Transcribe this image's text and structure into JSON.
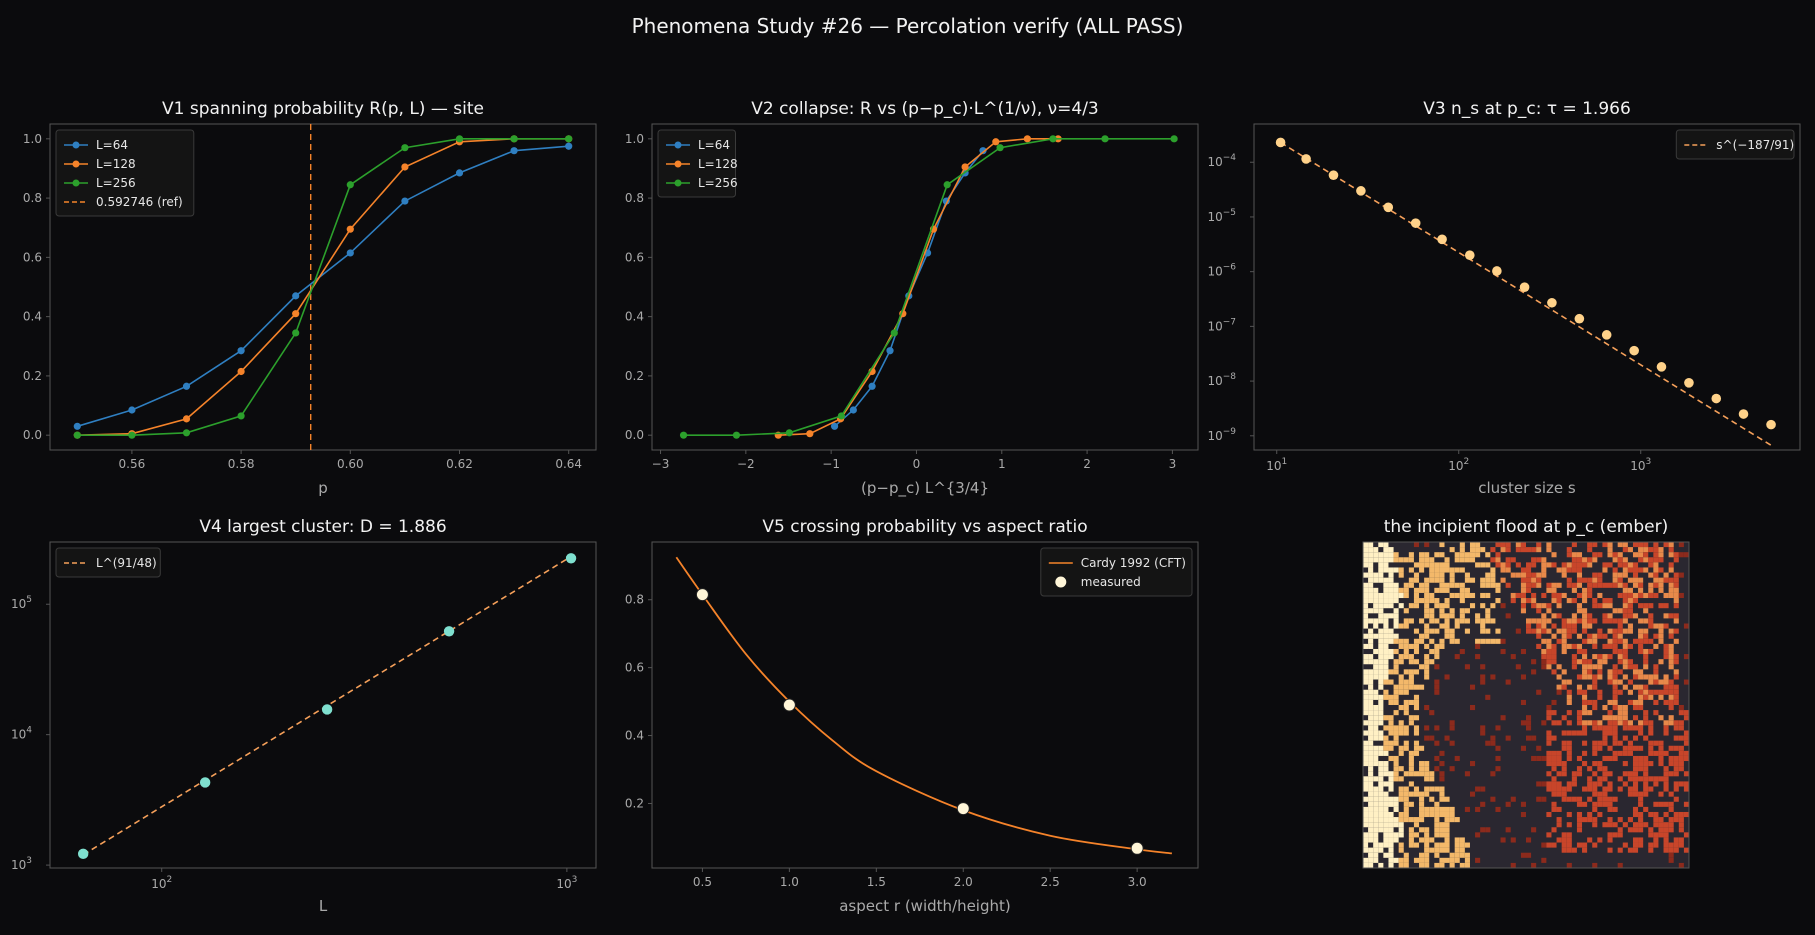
{
  "figure": {
    "title": "Phenomena Study #26 — Percolation verify (ALL PASS)",
    "colors": {
      "background": "#0b0b0d",
      "panel": "#0b0b0d",
      "frame": "#555555",
      "text": "#f2f2f2",
      "tick_text": "#aaaaaa",
      "label_text": "#aaaaaa"
    }
  },
  "chart_data": [
    {
      "id": "v1",
      "type": "line",
      "title": "V1 spanning probability R(p, L) — site",
      "xlabel": "p",
      "ylabel": "",
      "xlim": [
        0.545,
        0.645
      ],
      "ylim": [
        -0.05,
        1.05
      ],
      "xscale": "linear",
      "yscale": "linear",
      "xticks": [
        0.56,
        0.58,
        0.6,
        0.62,
        0.64
      ],
      "xtick_labels": [
        "0.56",
        "0.58",
        "0.60",
        "0.62",
        "0.64"
      ],
      "yticks": [
        0.0,
        0.2,
        0.4,
        0.6,
        0.8,
        1.0
      ],
      "ytick_labels": [
        "0.0",
        "0.2",
        "0.4",
        "0.6",
        "0.8",
        "1.0"
      ],
      "legend_position": "top-left",
      "x": [
        0.55,
        0.56,
        0.57,
        0.58,
        0.59,
        0.6,
        0.61,
        0.62,
        0.63,
        0.64
      ],
      "series": [
        {
          "name": "L=64",
          "color": "#2f7fc1",
          "values": [
            0.03,
            0.085,
            0.165,
            0.285,
            0.47,
            0.615,
            0.79,
            0.885,
            0.96,
            0.975
          ]
        },
        {
          "name": "L=128",
          "color": "#f5832a",
          "values": [
            0.0,
            0.005,
            0.055,
            0.215,
            0.41,
            0.695,
            0.905,
            0.99,
            1.0,
            1.0
          ]
        },
        {
          "name": "L=256",
          "color": "#2ca02c",
          "values": [
            0.0,
            0.0,
            0.008,
            0.065,
            0.345,
            0.845,
            0.97,
            1.0,
            1.0,
            1.0
          ]
        }
      ],
      "reference_lines": [
        {
          "name": "0.592746 (ref)",
          "orientation": "vertical",
          "x": 0.592746,
          "color": "#f5832a",
          "dashed": true
        }
      ]
    },
    {
      "id": "v2",
      "type": "line",
      "title": "V2 collapse: R vs (p−p_c)·L^(1/ν),  ν=4/3",
      "xlabel": "(p−p_c) L^{3/4}",
      "ylabel": "",
      "xlim": [
        -3.1,
        3.3
      ],
      "ylim": [
        -0.05,
        1.05
      ],
      "xscale": "linear",
      "yscale": "linear",
      "xticks": [
        -3,
        -2,
        -1,
        0,
        1,
        2,
        3
      ],
      "xtick_labels": [
        "−3",
        "−2",
        "−1",
        "0",
        "1",
        "2",
        "3"
      ],
      "yticks": [
        0.0,
        0.2,
        0.4,
        0.6,
        0.8,
        1.0
      ],
      "ytick_labels": [
        "0.0",
        "0.2",
        "0.4",
        "0.6",
        "0.8",
        "1.0"
      ],
      "legend_position": "top-left",
      "series": [
        {
          "name": "L=64",
          "color": "#2f7fc1",
          "x": [
            -0.96,
            -0.74,
            -0.52,
            -0.31,
            -0.09,
            0.13,
            0.35,
            0.57,
            0.78
          ],
          "values": [
            0.03,
            0.085,
            0.165,
            0.285,
            0.47,
            0.615,
            0.79,
            0.885,
            0.96
          ]
        },
        {
          "name": "L=128",
          "color": "#f5832a",
          "x": [
            -1.62,
            -1.25,
            -0.89,
            -0.52,
            -0.16,
            0.2,
            0.57,
            0.93,
            1.3,
            1.66
          ],
          "values": [
            0.0,
            0.005,
            0.055,
            0.215,
            0.41,
            0.695,
            0.905,
            0.99,
            1.0,
            1.0
          ]
        },
        {
          "name": "L=256",
          "color": "#2ca02c",
          "x": [
            -2.73,
            -2.11,
            -1.49,
            -0.88,
            -0.26,
            0.36,
            0.98,
            1.6,
            2.21,
            3.02
          ],
          "values": [
            0.0,
            0.0,
            0.008,
            0.065,
            0.345,
            0.845,
            0.97,
            1.0,
            1.0,
            1.0
          ]
        }
      ]
    },
    {
      "id": "v3",
      "type": "scatter",
      "title": "V3 n_s at p_c: τ = 1.966",
      "xlabel": "cluster size s",
      "ylabel": "",
      "xscale": "log",
      "yscale": "log",
      "xlim": [
        7.5,
        7500
      ],
      "ylim": [
        5.5e-10,
        0.0005
      ],
      "xticks": [
        10,
        100,
        1000
      ],
      "xtick_labels": [
        [
          "10",
          "1"
        ],
        [
          "10",
          "2"
        ],
        [
          "10",
          "3"
        ]
      ],
      "yticks": [
        1e-09,
        1e-08,
        1e-07,
        1e-06,
        1e-05,
        0.0001
      ],
      "ytick_labels": [
        [
          "10",
          "−9"
        ],
        [
          "10",
          "−8"
        ],
        [
          "10",
          "−7"
        ],
        [
          "10",
          "−6"
        ],
        [
          "10",
          "−5"
        ],
        [
          "10",
          "−4"
        ]
      ],
      "legend_position": "top-right",
      "series": [
        {
          "name": "",
          "color": "#ffd28a",
          "marker": "circle",
          "x": [
            10.5,
            14.5,
            20.5,
            29,
            41,
            58,
            81,
            115,
            162,
            230,
            325,
            460,
            650,
            920,
            1300,
            1840,
            2600,
            3670,
            5200
          ],
          "values": [
            0.00023,
            0.000115,
            5.8e-05,
            3e-05,
            1.5e-05,
            7.7e-06,
            3.9e-06,
            2e-06,
            1.03e-06,
            5.2e-07,
            2.7e-07,
            1.38e-07,
            7e-08,
            3.6e-08,
            1.82e-08,
            9.3e-09,
            4.8e-09,
            2.5e-09,
            1.6e-09
          ]
        }
      ],
      "reference_lines": [
        {
          "name": "s^(−187/91)",
          "color": "#f5a05a",
          "dashed": true,
          "exponent": -2.0549,
          "x": [
            10.5,
            5200
          ],
          "values": [
            0.00023,
            6.7e-10
          ]
        }
      ]
    },
    {
      "id": "v4",
      "type": "scatter",
      "title": "V4 largest cluster: D = 1.886",
      "xlabel": "L",
      "ylabel": "",
      "xscale": "log",
      "yscale": "log",
      "xlim": [
        53,
        1180
      ],
      "ylim": [
        950,
        300000
      ],
      "xticks": [
        100,
        1000
      ],
      "xtick_labels": [
        [
          "10",
          "2"
        ],
        [
          "10",
          "3"
        ]
      ],
      "yticks": [
        1000,
        10000,
        100000
      ],
      "ytick_labels": [
        [
          "10",
          "3"
        ],
        [
          "10",
          "4"
        ],
        [
          "10",
          "5"
        ]
      ],
      "legend_position": "top-left",
      "series": [
        {
          "name": "",
          "color": "#7fe0cf",
          "marker": "circle",
          "x": [
            64,
            128,
            256,
            512,
            1024
          ],
          "values": [
            1220,
            4300,
            15600,
            62000,
            225000
          ]
        }
      ],
      "reference_lines": [
        {
          "name": "L^(91/48)",
          "color": "#f5a05a",
          "dashed": true,
          "exponent": 1.8958,
          "x": [
            64,
            1024
          ],
          "values": [
            1200,
            232000
          ]
        }
      ]
    },
    {
      "id": "v5",
      "type": "line",
      "title": "V5 crossing probability vs aspect ratio",
      "xlabel": "aspect r (width/height)",
      "ylabel": "",
      "xscale": "linear",
      "yscale": "linear",
      "xlim": [
        0.21,
        3.35
      ],
      "ylim": [
        0.01,
        0.97
      ],
      "xticks": [
        0.5,
        1.0,
        1.5,
        2.0,
        2.5,
        3.0
      ],
      "xtick_labels": [
        "0.5",
        "1.0",
        "1.5",
        "2.0",
        "2.5",
        "3.0"
      ],
      "yticks": [
        0.2,
        0.4,
        0.6,
        0.8
      ],
      "ytick_labels": [
        "0.2",
        "0.4",
        "0.6",
        "0.8"
      ],
      "legend_position": "top-right",
      "series": [
        {
          "name": "Cardy 1992 (CFT)",
          "color": "#f5832a",
          "x": [
            0.35,
            0.5,
            0.75,
            1.0,
            1.25,
            1.5,
            2.0,
            2.5,
            3.0,
            3.2
          ],
          "values": [
            0.925,
            0.815,
            0.64,
            0.5,
            0.385,
            0.295,
            0.18,
            0.105,
            0.065,
            0.053
          ]
        },
        {
          "name": "measured",
          "color": "#fff6d8",
          "marker": "circle",
          "x": [
            0.5,
            1.0,
            2.0,
            3.0
          ],
          "values": [
            0.815,
            0.49,
            0.185,
            0.068
          ]
        }
      ]
    },
    {
      "id": "v6",
      "type": "heatmap",
      "title": "the incipient flood at p_c (ember)",
      "colors": [
        "#fff0c4",
        "#f3b86a",
        "#e8894a",
        "#c8452a",
        "#8c2a1c",
        "#2a2730"
      ]
    }
  ]
}
